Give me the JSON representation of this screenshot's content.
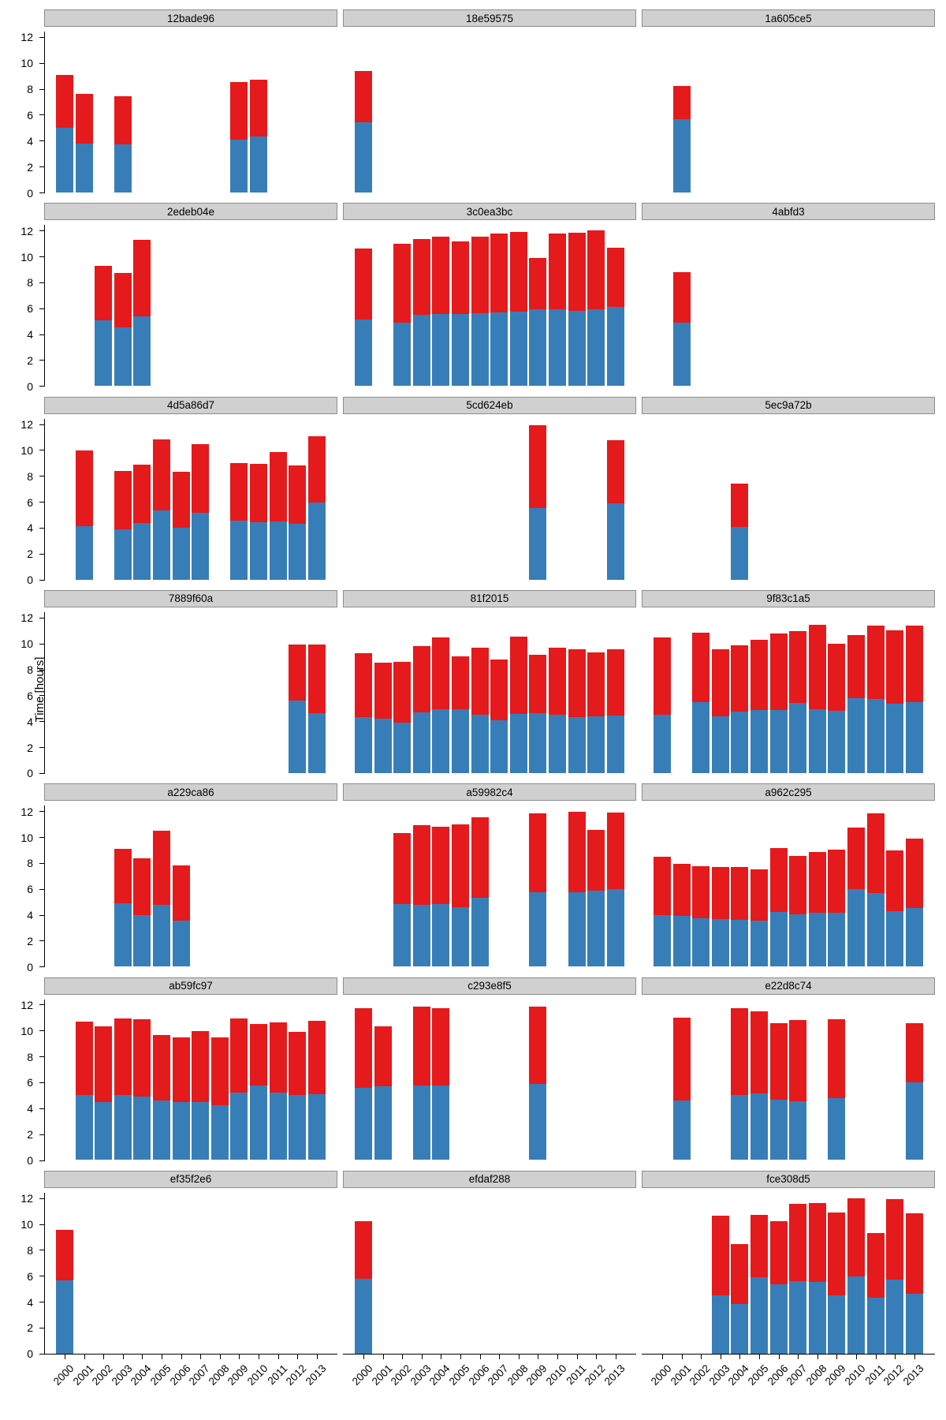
{
  "figure": {
    "ylabel": "Time [hours]",
    "y_ticks": [
      0,
      2,
      4,
      6,
      8,
      10,
      12
    ],
    "colors": {
      "blue": "#377eb8",
      "red": "#e41a1c",
      "strip_fill": "#d0d0d0",
      "strip_border": "#8c8c8c",
      "axis": "#000000",
      "background": "#ffffff"
    }
  },
  "chart_data": {
    "type": "bar",
    "stacked": true,
    "facet_grid": [
      7,
      3
    ],
    "title": "",
    "xlabel": "",
    "ylabel": "Time [hours]",
    "ylim": [
      0,
      12.6
    ],
    "categories": [
      "2000",
      "2001",
      "2002",
      "2003",
      "2004",
      "2005",
      "2006",
      "2007",
      "2008",
      "2009",
      "2010",
      "2011",
      "2012",
      "2013"
    ],
    "series_names": [
      "blue",
      "red"
    ],
    "note": "Each bar: blue = bottom segment value, total = stacked bar top; red segment = total - blue",
    "panels": [
      {
        "id": "12bade96",
        "bars": [
          {
            "year": "2000",
            "blue": 5.0,
            "total": 9.1
          },
          {
            "year": "2001",
            "blue": 3.8,
            "total": 7.6
          },
          {
            "year": "2003",
            "blue": 3.7,
            "total": 7.45
          },
          {
            "year": "2009",
            "blue": 4.1,
            "total": 8.5
          },
          {
            "year": "2010",
            "blue": 4.35,
            "total": 8.7
          }
        ]
      },
      {
        "id": "18e59575",
        "bars": [
          {
            "year": "2000",
            "blue": 5.45,
            "total": 9.35
          }
        ]
      },
      {
        "id": "1a605ce5",
        "bars": [
          {
            "year": "2001",
            "blue": 5.65,
            "total": 8.2
          }
        ]
      },
      {
        "id": "2edeb04e",
        "bars": [
          {
            "year": "2002",
            "blue": 5.05,
            "total": 9.3
          },
          {
            "year": "2003",
            "blue": 4.5,
            "total": 8.75
          },
          {
            "year": "2004",
            "blue": 5.4,
            "total": 11.3
          }
        ]
      },
      {
        "id": "3c0ea3bc",
        "bars": [
          {
            "year": "2000",
            "blue": 5.15,
            "total": 10.6
          },
          {
            "year": "2002",
            "blue": 4.9,
            "total": 11.0
          },
          {
            "year": "2003",
            "blue": 5.5,
            "total": 11.35
          },
          {
            "year": "2004",
            "blue": 5.55,
            "total": 11.5
          },
          {
            "year": "2005",
            "blue": 5.55,
            "total": 11.15
          },
          {
            "year": "2006",
            "blue": 5.6,
            "total": 11.5
          },
          {
            "year": "2007",
            "blue": 5.7,
            "total": 11.75
          },
          {
            "year": "2008",
            "blue": 5.75,
            "total": 11.9
          },
          {
            "year": "2009",
            "blue": 5.9,
            "total": 9.9
          },
          {
            "year": "2010",
            "blue": 5.9,
            "total": 11.8
          },
          {
            "year": "2011",
            "blue": 5.8,
            "total": 11.85
          },
          {
            "year": "2012",
            "blue": 5.9,
            "total": 12.0
          },
          {
            "year": "2013",
            "blue": 6.1,
            "total": 10.7
          }
        ]
      },
      {
        "id": "4abfd3",
        "bars": [
          {
            "year": "2001",
            "blue": 4.9,
            "total": 8.8
          }
        ]
      },
      {
        "id": "4d5a86d7",
        "bars": [
          {
            "year": "2001",
            "blue": 4.1,
            "total": 9.95
          },
          {
            "year": "2003",
            "blue": 3.85,
            "total": 8.4
          },
          {
            "year": "2004",
            "blue": 4.35,
            "total": 8.85
          },
          {
            "year": "2005",
            "blue": 5.35,
            "total": 10.8
          },
          {
            "year": "2006",
            "blue": 4.0,
            "total": 8.3
          },
          {
            "year": "2007",
            "blue": 5.15,
            "total": 10.45
          },
          {
            "year": "2009",
            "blue": 4.55,
            "total": 9.0
          },
          {
            "year": "2010",
            "blue": 4.4,
            "total": 8.9
          },
          {
            "year": "2011",
            "blue": 4.5,
            "total": 9.85
          },
          {
            "year": "2012",
            "blue": 4.3,
            "total": 8.8
          },
          {
            "year": "2013",
            "blue": 5.95,
            "total": 11.05
          }
        ]
      },
      {
        "id": "5cd624eb",
        "bars": [
          {
            "year": "2009",
            "blue": 5.5,
            "total": 11.9
          },
          {
            "year": "2013",
            "blue": 5.9,
            "total": 10.75
          }
        ]
      },
      {
        "id": "5ec9a72b",
        "bars": [
          {
            "year": "2004",
            "blue": 4.05,
            "total": 7.4
          }
        ]
      },
      {
        "id": "7889f60a",
        "bars": [
          {
            "year": "2012",
            "blue": 5.6,
            "total": 9.9
          },
          {
            "year": "2013",
            "blue": 4.65,
            "total": 9.9
          }
        ]
      },
      {
        "id": "81f2015",
        "bars": [
          {
            "year": "2000",
            "blue": 4.3,
            "total": 9.25
          },
          {
            "year": "2001",
            "blue": 4.2,
            "total": 8.5
          },
          {
            "year": "2002",
            "blue": 3.9,
            "total": 8.55
          },
          {
            "year": "2003",
            "blue": 4.7,
            "total": 9.8
          },
          {
            "year": "2004",
            "blue": 4.9,
            "total": 10.45
          },
          {
            "year": "2005",
            "blue": 4.9,
            "total": 9.0
          },
          {
            "year": "2006",
            "blue": 4.5,
            "total": 9.7
          },
          {
            "year": "2007",
            "blue": 4.1,
            "total": 8.75
          },
          {
            "year": "2008",
            "blue": 4.55,
            "total": 10.55
          },
          {
            "year": "2009",
            "blue": 4.6,
            "total": 9.1
          },
          {
            "year": "2010",
            "blue": 4.5,
            "total": 9.65
          },
          {
            "year": "2011",
            "blue": 4.3,
            "total": 9.55
          },
          {
            "year": "2012",
            "blue": 4.35,
            "total": 9.3
          },
          {
            "year": "2013",
            "blue": 4.45,
            "total": 9.55
          }
        ]
      },
      {
        "id": "9f83c1a5",
        "bars": [
          {
            "year": "2000",
            "blue": 4.5,
            "total": 10.45
          },
          {
            "year": "2002",
            "blue": 5.45,
            "total": 10.85
          },
          {
            "year": "2003",
            "blue": 4.4,
            "total": 9.55
          },
          {
            "year": "2004",
            "blue": 4.75,
            "total": 9.85
          },
          {
            "year": "2005",
            "blue": 4.85,
            "total": 10.3
          },
          {
            "year": "2006",
            "blue": 4.85,
            "total": 10.75
          },
          {
            "year": "2007",
            "blue": 5.4,
            "total": 10.95
          },
          {
            "year": "2008",
            "blue": 4.9,
            "total": 11.45
          },
          {
            "year": "2009",
            "blue": 4.8,
            "total": 10.0
          },
          {
            "year": "2010",
            "blue": 5.75,
            "total": 10.65
          },
          {
            "year": "2011",
            "blue": 5.7,
            "total": 11.4
          },
          {
            "year": "2012",
            "blue": 5.35,
            "total": 11.0
          },
          {
            "year": "2013",
            "blue": 5.5,
            "total": 11.4
          }
        ]
      },
      {
        "id": "a229ca86",
        "bars": [
          {
            "year": "2003",
            "blue": 4.9,
            "total": 9.1
          },
          {
            "year": "2004",
            "blue": 4.0,
            "total": 8.35
          },
          {
            "year": "2005",
            "blue": 4.75,
            "total": 10.5
          },
          {
            "year": "2006",
            "blue": 3.55,
            "total": 7.8
          }
        ]
      },
      {
        "id": "a59982c4",
        "bars": [
          {
            "year": "2002",
            "blue": 4.85,
            "total": 10.3
          },
          {
            "year": "2003",
            "blue": 4.75,
            "total": 10.9
          },
          {
            "year": "2004",
            "blue": 4.8,
            "total": 10.8
          },
          {
            "year": "2005",
            "blue": 4.6,
            "total": 11.0
          },
          {
            "year": "2006",
            "blue": 5.3,
            "total": 11.5
          },
          {
            "year": "2009",
            "blue": 5.75,
            "total": 11.85
          },
          {
            "year": "2011",
            "blue": 5.75,
            "total": 11.95
          },
          {
            "year": "2012",
            "blue": 5.85,
            "total": 10.55
          },
          {
            "year": "2013",
            "blue": 5.95,
            "total": 11.9
          }
        ]
      },
      {
        "id": "a962c295",
        "bars": [
          {
            "year": "2000",
            "blue": 3.95,
            "total": 8.5
          },
          {
            "year": "2001",
            "blue": 3.9,
            "total": 7.9
          },
          {
            "year": "2002",
            "blue": 3.7,
            "total": 7.75
          },
          {
            "year": "2003",
            "blue": 3.65,
            "total": 7.7
          },
          {
            "year": "2004",
            "blue": 3.6,
            "total": 7.7
          },
          {
            "year": "2005",
            "blue": 3.55,
            "total": 7.5
          },
          {
            "year": "2006",
            "blue": 4.2,
            "total": 9.15
          },
          {
            "year": "2007",
            "blue": 4.05,
            "total": 8.55
          },
          {
            "year": "2008",
            "blue": 4.15,
            "total": 8.85
          },
          {
            "year": "2009",
            "blue": 4.15,
            "total": 9.0
          },
          {
            "year": "2010",
            "blue": 6.0,
            "total": 10.75
          },
          {
            "year": "2011",
            "blue": 5.65,
            "total": 11.85
          },
          {
            "year": "2012",
            "blue": 4.3,
            "total": 8.95
          },
          {
            "year": "2013",
            "blue": 4.5,
            "total": 9.85
          }
        ]
      },
      {
        "id": "ab59fc97",
        "bars": [
          {
            "year": "2001",
            "blue": 5.0,
            "total": 10.7
          },
          {
            "year": "2002",
            "blue": 4.45,
            "total": 10.3
          },
          {
            "year": "2003",
            "blue": 5.05,
            "total": 10.95
          },
          {
            "year": "2004",
            "blue": 4.9,
            "total": 10.85
          },
          {
            "year": "2005",
            "blue": 4.6,
            "total": 9.65
          },
          {
            "year": "2006",
            "blue": 4.45,
            "total": 9.45
          },
          {
            "year": "2007",
            "blue": 4.45,
            "total": 9.95
          },
          {
            "year": "2008",
            "blue": 4.25,
            "total": 9.5
          },
          {
            "year": "2009",
            "blue": 5.2,
            "total": 10.95
          },
          {
            "year": "2010",
            "blue": 5.75,
            "total": 10.5
          },
          {
            "year": "2011",
            "blue": 5.2,
            "total": 10.65
          },
          {
            "year": "2012",
            "blue": 5.0,
            "total": 9.9
          },
          {
            "year": "2013",
            "blue": 5.1,
            "total": 10.75
          }
        ]
      },
      {
        "id": "c293e8f5",
        "bars": [
          {
            "year": "2000",
            "blue": 5.55,
            "total": 11.7
          },
          {
            "year": "2001",
            "blue": 5.7,
            "total": 10.3
          },
          {
            "year": "2003",
            "blue": 5.75,
            "total": 11.85
          },
          {
            "year": "2004",
            "blue": 5.75,
            "total": 11.75
          },
          {
            "year": "2009",
            "blue": 5.85,
            "total": 11.85
          }
        ]
      },
      {
        "id": "e22d8c74",
        "bars": [
          {
            "year": "2001",
            "blue": 4.6,
            "total": 11.0
          },
          {
            "year": "2004",
            "blue": 5.05,
            "total": 11.75
          },
          {
            "year": "2005",
            "blue": 5.15,
            "total": 11.5
          },
          {
            "year": "2006",
            "blue": 4.65,
            "total": 10.55
          },
          {
            "year": "2007",
            "blue": 4.55,
            "total": 10.8
          },
          {
            "year": "2009",
            "blue": 4.8,
            "total": 10.9
          },
          {
            "year": "2013",
            "blue": 6.0,
            "total": 10.55
          }
        ]
      },
      {
        "id": "ef35f2e6",
        "bars": [
          {
            "year": "2000",
            "blue": 5.65,
            "total": 9.55
          }
        ]
      },
      {
        "id": "efdaf288",
        "bars": [
          {
            "year": "2000",
            "blue": 5.8,
            "total": 10.2
          }
        ]
      },
      {
        "id": "fce308d5",
        "bars": [
          {
            "year": "2003",
            "blue": 4.5,
            "total": 10.65
          },
          {
            "year": "2004",
            "blue": 3.8,
            "total": 8.45
          },
          {
            "year": "2005",
            "blue": 5.9,
            "total": 10.7
          },
          {
            "year": "2006",
            "blue": 5.35,
            "total": 10.2
          },
          {
            "year": "2007",
            "blue": 5.6,
            "total": 11.55
          },
          {
            "year": "2008",
            "blue": 5.55,
            "total": 11.6
          },
          {
            "year": "2009",
            "blue": 4.5,
            "total": 10.9
          },
          {
            "year": "2010",
            "blue": 5.95,
            "total": 12.0
          },
          {
            "year": "2011",
            "blue": 4.3,
            "total": 9.3
          },
          {
            "year": "2012",
            "blue": 5.7,
            "total": 11.95
          },
          {
            "year": "2013",
            "blue": 4.6,
            "total": 10.85
          }
        ]
      }
    ]
  }
}
